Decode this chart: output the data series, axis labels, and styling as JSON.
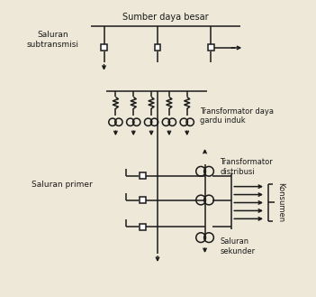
{
  "bg_color": "#ede8d8",
  "line_color": "#1a1a1a",
  "text_color": "#1a1a1a",
  "labels": {
    "sumber": "Sumber daya besar",
    "saluran_sub": "Saluran\nsubtransmisi",
    "trafo_daya": "Transformator daya\ngardu induk",
    "saluran_primer": "Saluran primer",
    "trafo_dist": "Transformator\ndistribusi",
    "saluran_sek": "Saluran\nsekunder",
    "konsumen": "Konsumen"
  },
  "figsize": [
    3.51,
    3.29
  ],
  "dpi": 100
}
